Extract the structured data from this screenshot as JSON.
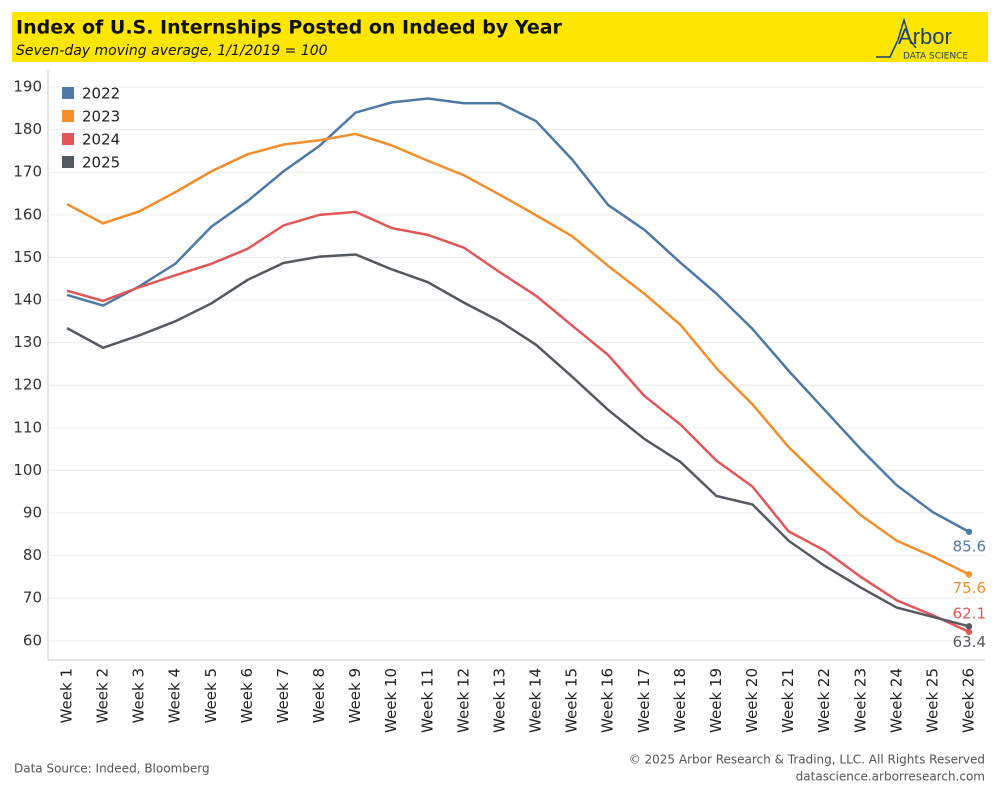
{
  "chart_data": {
    "type": "line",
    "title": "Index of U.S. Internships Posted on Indeed by Year",
    "subtitle": "Seven-day moving average, 1/1/2019 = 100",
    "logo": "Arbor",
    "logo_sub": "DATA SCIENCE",
    "source": "Data Source: Indeed, Bloomberg",
    "copyright": "© 2025 Arbor Research & Trading, LLC. All Rights Reserved",
    "website": "datascience.arborresearch.com",
    "categories": [
      "Week 1",
      "Week 2",
      "Week 3",
      "Week 4",
      "Week 5",
      "Week 6",
      "Week 7",
      "Week 8",
      "Week 9",
      "Week 10",
      "Week 11",
      "Week 12",
      "Week 13",
      "Week 14",
      "Week 15",
      "Week 16",
      "Week 17",
      "Week 18",
      "Week 19",
      "Week 20",
      "Week 21",
      "Week 22",
      "Week 23",
      "Week 24",
      "Week 25",
      "Week 26"
    ],
    "series": [
      {
        "name": "2022",
        "color": "#4e79a7",
        "values": [
          141.2,
          138.7,
          143.2,
          148.5,
          157.2,
          163.2,
          170.2,
          176.2,
          184,
          186.4,
          187.3,
          186.2,
          186.2,
          182,
          173,
          162.3,
          156.5,
          148.8,
          141.5,
          133.2,
          123.4,
          114.2,
          105,
          96.5,
          90.2,
          85.6
        ]
      },
      {
        "name": "2023",
        "color": "#f28e2b",
        "values": [
          162.5,
          158,
          160.8,
          165.3,
          170.2,
          174.2,
          176.5,
          177.5,
          179,
          176.3,
          172.7,
          169.3,
          164.7,
          159.9,
          155,
          148,
          141.5,
          134.2,
          124,
          115.5,
          105.5,
          97.3,
          89.5,
          83.5,
          79.8,
          75.6
        ]
      },
      {
        "name": "2024",
        "color": "#e15759",
        "values": [
          142.2,
          139.8,
          143,
          145.8,
          148.5,
          152,
          157.5,
          160,
          160.7,
          156.9,
          155.3,
          152.3,
          146.5,
          141,
          134,
          127.1,
          117.5,
          110.8,
          102.3,
          96.2,
          85.7,
          81.2,
          75,
          69.5,
          66,
          62.1
        ]
      },
      {
        "name": "2025",
        "color": "#555a60",
        "values": [
          133.4,
          128.8,
          131.7,
          135,
          139.2,
          144.7,
          148.7,
          150.2,
          150.7,
          147.2,
          144.2,
          139.4,
          135,
          129.5,
          122,
          114.2,
          107.4,
          102,
          94,
          92,
          83.5,
          77.6,
          72.5,
          67.8,
          65.6,
          63.4
        ]
      }
    ],
    "ylim": [
      55.5,
      194
    ],
    "yticks": [
      60,
      70,
      80,
      90,
      100,
      110,
      120,
      130,
      140,
      150,
      160,
      170,
      180,
      190
    ],
    "grid": true
  }
}
